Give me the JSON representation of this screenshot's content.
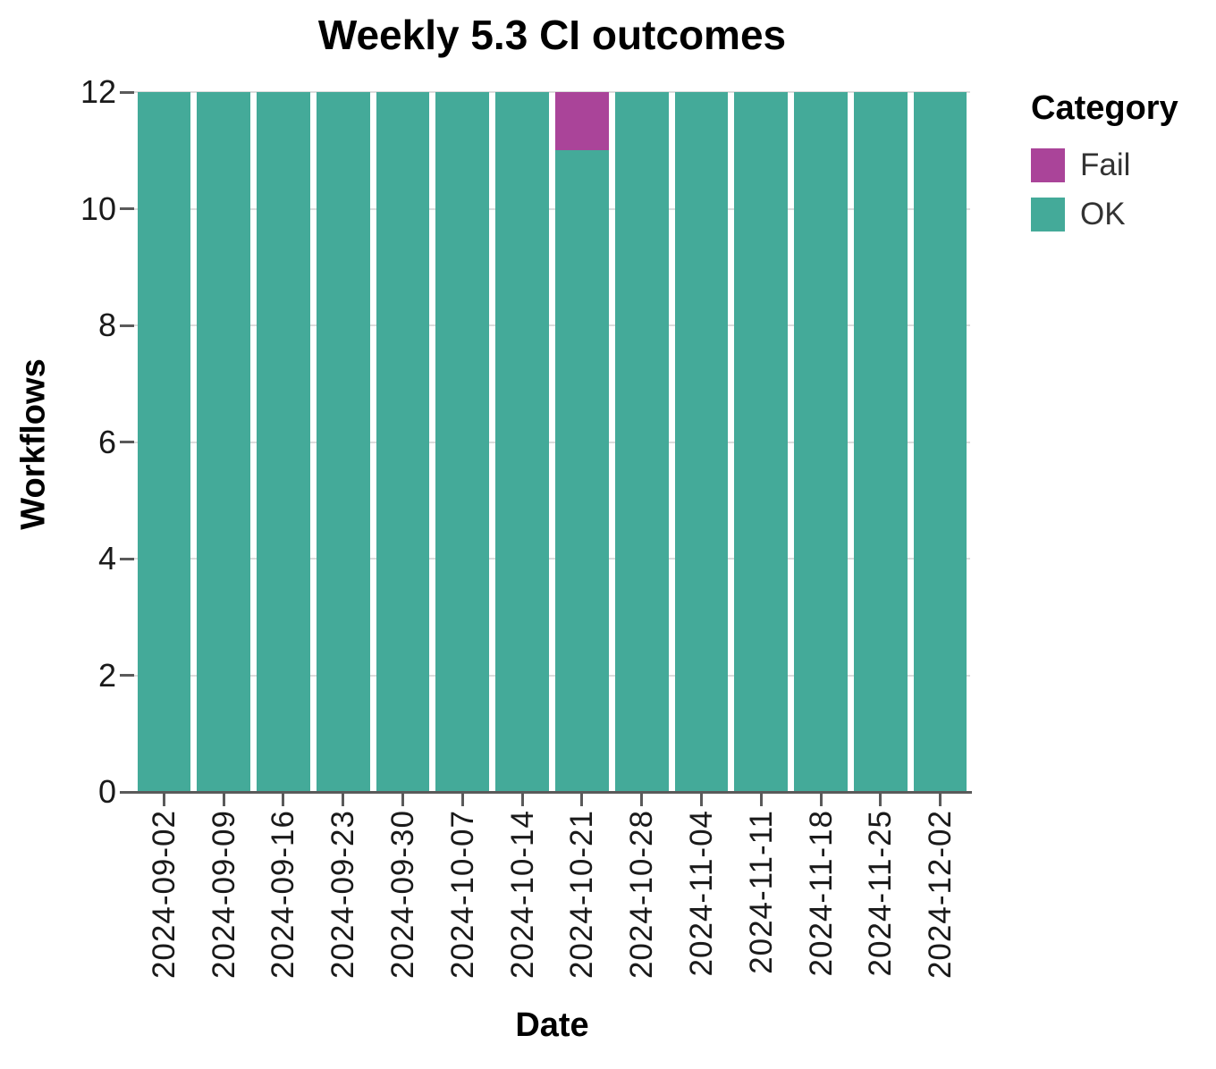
{
  "chart_data": {
    "type": "bar",
    "stacked": true,
    "title": "Weekly 5.3 CI outcomes",
    "xlabel": "Date",
    "ylabel": "Workflows",
    "categories": [
      "2024-09-02",
      "2024-09-09",
      "2024-09-16",
      "2024-09-23",
      "2024-09-30",
      "2024-10-07",
      "2024-10-14",
      "2024-10-21",
      "2024-10-28",
      "2024-11-04",
      "2024-11-11",
      "2024-11-18",
      "2024-11-25",
      "2024-12-02"
    ],
    "series": [
      {
        "name": "Fail",
        "color": "#AA4499",
        "values": [
          0,
          0,
          0,
          0,
          0,
          0,
          0,
          1,
          0,
          0,
          0,
          0,
          0,
          0
        ]
      },
      {
        "name": "OK",
        "color": "#44AA99",
        "values": [
          12,
          12,
          12,
          12,
          12,
          12,
          12,
          11,
          12,
          12,
          12,
          12,
          12,
          12
        ]
      }
    ],
    "ylim": [
      0,
      12
    ],
    "yticks": [
      0,
      2,
      4,
      6,
      8,
      10,
      12
    ],
    "grid": true,
    "legend": {
      "title": "Category",
      "position": "right"
    }
  },
  "colors": {
    "axis": "#5a5a5a",
    "gridline": "#dcdcdc",
    "tick_label": "#1a1a1a",
    "background": "#ffffff"
  }
}
